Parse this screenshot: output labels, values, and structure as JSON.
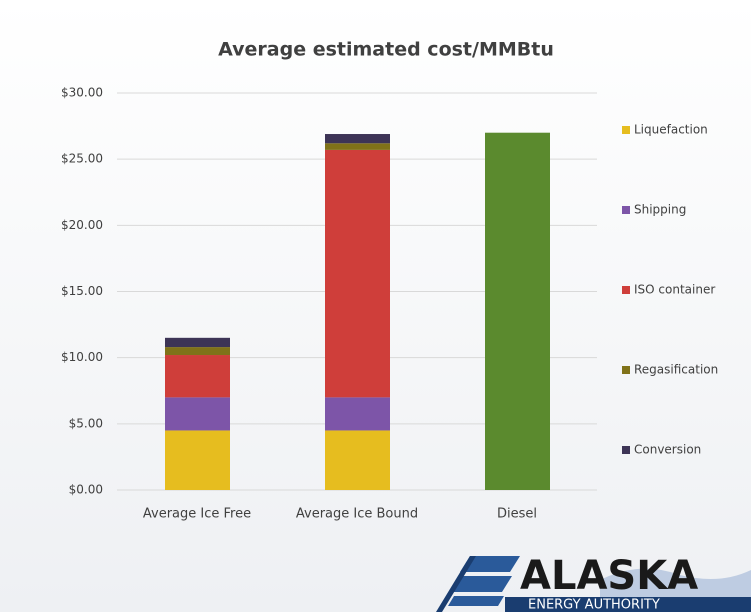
{
  "chart_data": {
    "type": "stacked_bar",
    "title": "Average estimated cost/MMBtu",
    "categories": [
      "Average Ice Free",
      "Average Ice Bound",
      "Diesel"
    ],
    "series": [
      {
        "name": "Liquefaction",
        "color": "#e6bd1f",
        "values": [
          4.5,
          4.5,
          null
        ]
      },
      {
        "name": "Shipping",
        "color": "#7d55a8",
        "values": [
          2.5,
          2.5,
          null
        ]
      },
      {
        "name": "ISO container",
        "color": "#cf3e3a",
        "values": [
          3.2,
          18.7,
          null
        ]
      },
      {
        "name": "Regasification",
        "color": "#807219",
        "values": [
          0.6,
          0.5,
          null
        ]
      },
      {
        "name": "Conversion",
        "color": "#3d3456",
        "values": [
          0.7,
          0.7,
          null
        ]
      },
      {
        "color": "#5b8a2e",
        "values": [
          null,
          null,
          27.0
        ]
      }
    ],
    "ylim": [
      0,
      30
    ],
    "yticks": [
      {
        "value": 0,
        "label": "$0.00"
      },
      {
        "value": 5,
        "label": "$5.00"
      },
      {
        "value": 10,
        "label": "$10.00"
      },
      {
        "value": 15,
        "label": "$15.00"
      },
      {
        "value": 20,
        "label": "$20.00"
      },
      {
        "value": 25,
        "label": "$25.00"
      },
      {
        "value": 30,
        "label": "$30.00"
      }
    ],
    "grid": true,
    "legend": "right"
  },
  "logo": {
    "name": "ALASKA",
    "subtitle": "ENERGY AUTHORITY"
  }
}
